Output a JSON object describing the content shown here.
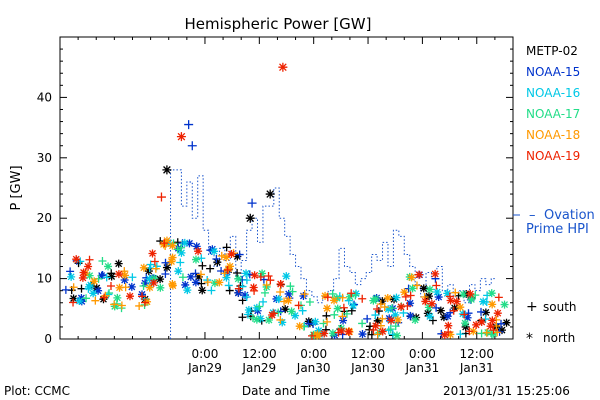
{
  "chart_data": {
    "type": "scatter",
    "title": "Hemispheric Power [GW]",
    "ylabel": "P [GW]",
    "xlabel": "Date and Time",
    "ylim": [
      0,
      50
    ],
    "xlim": [
      -8,
      17
    ],
    "yticks": [
      0,
      10,
      20,
      30,
      40
    ],
    "xticks": [
      {
        "x": 0,
        "time": "0:00",
        "date": "Jan29"
      },
      {
        "x": 3,
        "time": "12:00",
        "date": "Jan29"
      },
      {
        "x": 6,
        "time": "0:00",
        "date": "Jan30"
      },
      {
        "x": 9,
        "time": "12:00",
        "date": "Jan30"
      },
      {
        "x": 12,
        "time": "0:00",
        "date": "Jan31"
      },
      {
        "x": 15,
        "time": "12:00",
        "date": "Jan31"
      }
    ],
    "series": [
      {
        "name": "METP-02",
        "color": "#000000"
      },
      {
        "name": "NOAA-15",
        "color": "#0033cc"
      },
      {
        "name": "NOAA-16",
        "color": "#00c8e6"
      },
      {
        "name": "NOAA-17",
        "color": "#22dd88"
      },
      {
        "name": "NOAA-18",
        "color": "#ff9900"
      },
      {
        "name": "NOAA-19",
        "color": "#ee2200"
      }
    ],
    "ovation": {
      "label_line1": "Ovation",
      "label_line2": "Prime HPI",
      "color": "#1a55cc",
      "x": [
        -1.9,
        -1.6,
        -1.3,
        -1.0,
        -0.7,
        -0.4,
        -0.1,
        0.2,
        0.5,
        0.8,
        1.1,
        1.4,
        1.7,
        2.0,
        2.3,
        2.6,
        2.9,
        3.2,
        3.5,
        3.8,
        4.1,
        4.4,
        4.7,
        5.0,
        5.3,
        5.6,
        5.9,
        6.2,
        6.5,
        6.8,
        7.1,
        7.4,
        7.7,
        8.0,
        8.3,
        8.6,
        8.9,
        9.2,
        9.5,
        9.8,
        10.1,
        10.4,
        10.7,
        11.0,
        11.3,
        11.6,
        11.9,
        12.2,
        12.5,
        12.8,
        13.1,
        13.4,
        13.7,
        14.0,
        14.3,
        14.6,
        14.9,
        15.2,
        15.5,
        15.8
      ],
      "y": [
        28,
        28,
        22,
        26,
        20,
        27,
        18,
        14,
        12,
        15,
        13,
        17,
        10,
        13,
        18,
        20,
        16,
        22,
        22,
        25,
        20,
        17,
        14,
        12,
        10,
        8,
        7,
        6,
        7,
        8,
        10,
        15,
        12,
        11,
        9,
        10,
        11,
        14,
        13,
        16,
        12,
        18,
        17,
        14,
        12,
        9,
        7,
        11,
        10,
        12,
        8,
        9,
        7,
        8,
        6,
        9,
        8,
        10,
        9,
        10
      ]
    },
    "markers": {
      "south_symbol": "+",
      "south_label": "south",
      "north_symbol": "*",
      "north_label": "north"
    }
  },
  "footer": {
    "left": "Plot: CCMC",
    "center": "Date and Time",
    "right": "2013/01/31 15:25:06"
  }
}
